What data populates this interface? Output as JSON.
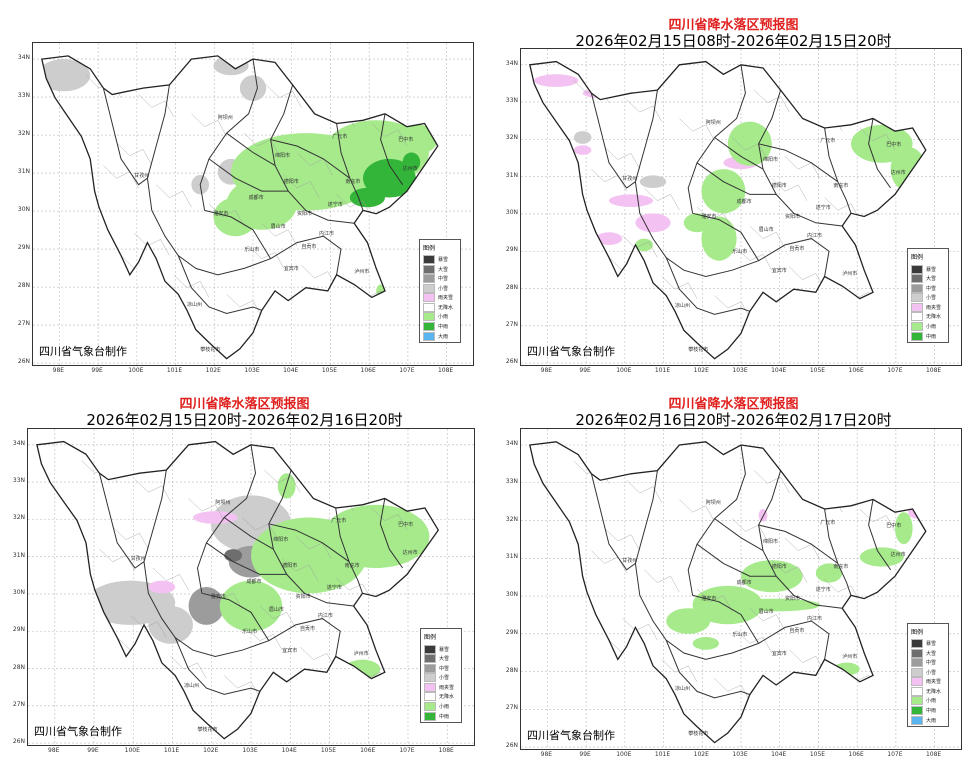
{
  "colors": {
    "storm_snow": "#3a3a3a",
    "heavy_snow": "#6e6e6e",
    "moderate_snow": "#9c9c9c",
    "light_snow": "#cdcdcd",
    "sleet": "#f4c2f2",
    "no_precip": "#ffffff",
    "light_rain": "#a6ea8c",
    "moderate_rain": "#33b53a",
    "heavy_rain": "#5ab4f0",
    "title_red": "#e0201e"
  },
  "lat_labels": [
    "34N",
    "33N",
    "32N",
    "31N",
    "30N",
    "29N",
    "28N",
    "27N",
    "26N"
  ],
  "lon_labels": [
    "98E",
    "99E",
    "100E",
    "101E",
    "102E",
    "103E",
    "104E",
    "105E",
    "106E",
    "107E",
    "108E"
  ],
  "credit": "四川省气象台制作",
  "legend_title": "图例",
  "cities": [
    "阿坝州",
    "广元市",
    "巴中市",
    "绵阳市",
    "达州市",
    "南充市",
    "德阳市",
    "甘孜州",
    "成都市",
    "遂宁市",
    "雅安市",
    "资阳市",
    "眉山市",
    "内江市",
    "乐山市",
    "自贡市",
    "宜宾市",
    "泸州市",
    "凉山州",
    "攀枝花市"
  ],
  "panels": [
    {
      "title": "",
      "subtitle": "",
      "legend": [
        {
          "label": "暴雪",
          "color": "storm_snow"
        },
        {
          "label": "大雪",
          "color": "heavy_snow"
        },
        {
          "label": "中雪",
          "color": "moderate_snow"
        },
        {
          "label": "小雪",
          "color": "light_snow"
        },
        {
          "label": "雨夹雪",
          "color": "sleet"
        },
        {
          "label": "无降水",
          "color": "no_precip"
        },
        {
          "label": "小雨",
          "color": "light_rain"
        },
        {
          "label": "中雨",
          "color": "moderate_rain"
        },
        {
          "label": "大雨",
          "color": "heavy_rain"
        }
      ]
    },
    {
      "title": "四川省降水落区预报图",
      "subtitle": "2026年02月15日08时-2026年02月15日20时",
      "legend": [
        {
          "label": "暴雪",
          "color": "storm_snow"
        },
        {
          "label": "大雪",
          "color": "heavy_snow"
        },
        {
          "label": "中雪",
          "color": "moderate_snow"
        },
        {
          "label": "小雪",
          "color": "light_snow"
        },
        {
          "label": "雨夹雪",
          "color": "sleet"
        },
        {
          "label": "无降水",
          "color": "no_precip"
        },
        {
          "label": "小雨",
          "color": "light_rain"
        },
        {
          "label": "中雨",
          "color": "moderate_rain"
        }
      ]
    },
    {
      "title": "四川省降水落区预报图",
      "subtitle": "2026年02月15日20时-2026年02月16日20时",
      "legend": [
        {
          "label": "暴雪",
          "color": "storm_snow"
        },
        {
          "label": "大雪",
          "color": "heavy_snow"
        },
        {
          "label": "中雪",
          "color": "moderate_snow"
        },
        {
          "label": "小雪",
          "color": "light_snow"
        },
        {
          "label": "雨夹雪",
          "color": "sleet"
        },
        {
          "label": "无降水",
          "color": "no_precip"
        },
        {
          "label": "小雨",
          "color": "light_rain"
        },
        {
          "label": "中雨",
          "color": "moderate_rain"
        }
      ]
    },
    {
      "title": "四川省降水落区预报图",
      "subtitle": "2026年02月16日20时-2026年02月17日20时",
      "legend": [
        {
          "label": "暴雪",
          "color": "storm_snow"
        },
        {
          "label": "大雪",
          "color": "heavy_snow"
        },
        {
          "label": "中雪",
          "color": "moderate_snow"
        },
        {
          "label": "小雪",
          "color": "light_snow"
        },
        {
          "label": "雨夹雪",
          "color": "sleet"
        },
        {
          "label": "无降水",
          "color": "no_precip"
        },
        {
          "label": "小雨",
          "color": "light_rain"
        },
        {
          "label": "中雨",
          "color": "moderate_rain"
        },
        {
          "label": "大雨",
          "color": "heavy_rain"
        }
      ]
    }
  ]
}
